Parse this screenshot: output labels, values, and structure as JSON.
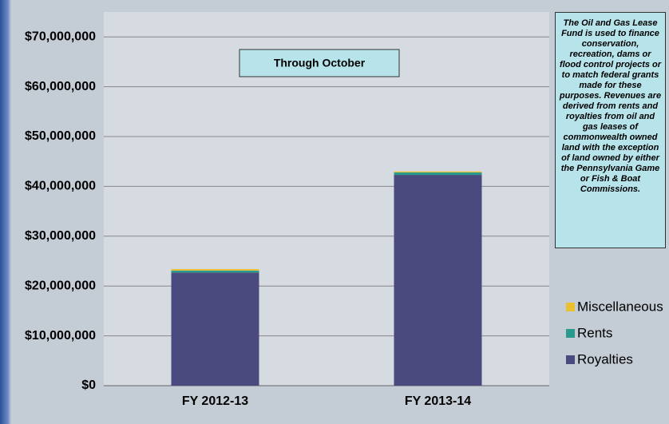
{
  "chart_data": {
    "type": "stacked_bar",
    "subtitle": "Through October",
    "annotation": "The Oil and Gas Lease Fund is used to finance conservation, recreation, dams or flood control projects or to match federal grants made for these purposes. Revenues are derived from rents and royalties from oil and gas leases of commonwealth owned land with the exception of land owned by either the Pennsylvania Game or Fish & Boat Commissions.",
    "categories": [
      "FY 2012-13",
      "FY 2013-14"
    ],
    "series": [
      {
        "name": "Royalties",
        "color": "#4b4a7e",
        "values": [
          22700000,
          42300000
        ]
      },
      {
        "name": "Rents",
        "color": "#2a9a8c",
        "values": [
          400000,
          500000
        ]
      },
      {
        "name": "Miscellaneous",
        "color": "#e8c030",
        "values": [
          300000,
          200000
        ]
      }
    ],
    "ylim": [
      0,
      75000000
    ],
    "yticks": [
      {
        "value": 0,
        "label": "$0"
      },
      {
        "value": 10000000,
        "label": "$10,000,000"
      },
      {
        "value": 20000000,
        "label": "$20,000,000"
      },
      {
        "value": 30000000,
        "label": "$30,000,000"
      },
      {
        "value": 40000000,
        "label": "$40,000,000"
      },
      {
        "value": 50000000,
        "label": "$50,000,000"
      },
      {
        "value": 60000000,
        "label": "$60,000,000"
      },
      {
        "value": 70000000,
        "label": "$70,000,000"
      }
    ],
    "grid": true
  }
}
